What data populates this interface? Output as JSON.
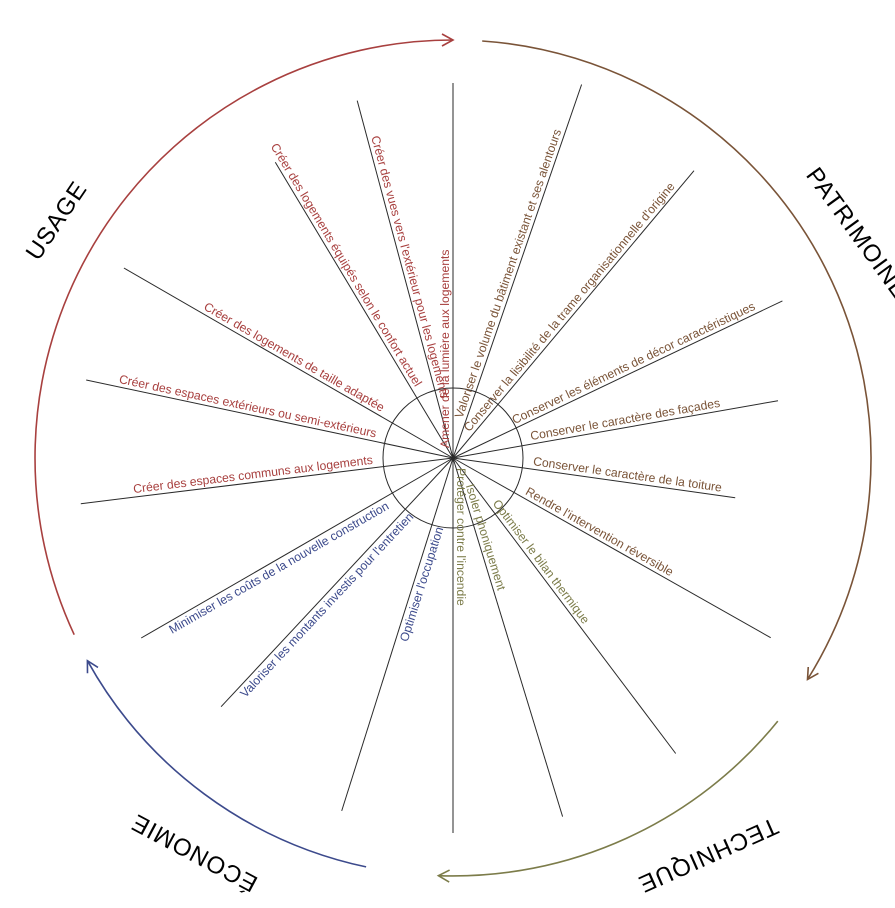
{
  "colors": {
    "usage": "#a8403f",
    "patrimoine": "#7a5438",
    "technique": "#7c7c4a",
    "economie": "#3c4a8c",
    "lines": "#2a2a2a"
  },
  "categories": {
    "usage": "USAGE",
    "patrimoine": "PATRIMOINE",
    "technique": "TECHNIQUE",
    "economie": "ÉCONOMIE"
  },
  "criteria": [
    {
      "text": "Amener de la lumière aux logements",
      "group": "usage"
    },
    {
      "text": "Créer des vues vers l'extérieur pour les logements",
      "group": "usage"
    },
    {
      "text": "Créer des logements équipés selon le confort actuel",
      "group": "usage"
    },
    {
      "text": "Créer des logements de taille adaptée",
      "group": "usage"
    },
    {
      "text": "Créer des espaces extérieurs ou semi-extérieurs",
      "group": "usage"
    },
    {
      "text": "Créer des espaces communs aux logements",
      "group": "usage"
    },
    {
      "text": "Minimiser les coûts de la nouvelle construction",
      "group": "economie"
    },
    {
      "text": "Valoriser les montants investis pour l'entretien",
      "group": "economie"
    },
    {
      "text": "Optimiser l'occupation",
      "group": "economie"
    },
    {
      "text": "Protéger contre l'incendie",
      "group": "technique"
    },
    {
      "text": "Isoler phoniquement",
      "group": "technique"
    },
    {
      "text": "Optimiser le bilan thermique",
      "group": "technique"
    },
    {
      "text": "Rendre l'intervention réversible",
      "group": "patrimoine"
    },
    {
      "text": "Conserver le caractère de la toiture",
      "group": "patrimoine"
    },
    {
      "text": "Conserver le caractère des façades",
      "group": "patrimoine"
    },
    {
      "text": "Conserver les éléments de décor caractéristiques",
      "group": "patrimoine"
    },
    {
      "text": "Conserver la lisibilité de la trame organisationnelle d'origine",
      "group": "patrimoine"
    },
    {
      "text": "Valoriser le volume du bâtiment existant et ses alentours",
      "group": "patrimoine"
    }
  ]
}
